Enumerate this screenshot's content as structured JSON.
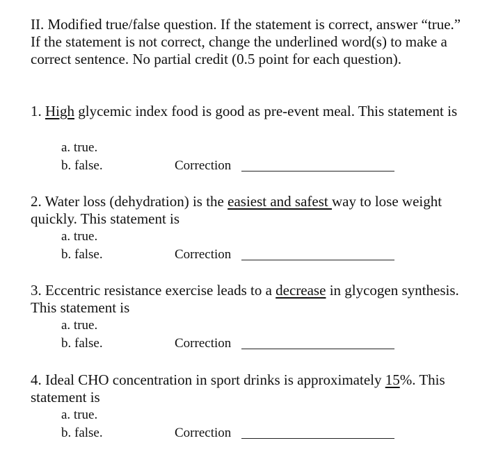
{
  "instructions": "II. Modified true/false question. If the statement is correct, answer “true.” If the statement is not correct, change the underlined word(s) to make a correct sentence. No partial credit (0.5 point for each question).",
  "questions": [
    {
      "pre": "1. ",
      "underlined": "High",
      "post": " glycemic index food is good as pre-event meal. This statement is",
      "option_a": "a. true.",
      "option_b": "b. false.",
      "correction_label": "Correction"
    },
    {
      "pre": "2. Water loss (dehydration) is the ",
      "underlined": "easiest and safest ",
      "post": "way to lose weight quickly. This statement is",
      "option_a": "a. true.",
      "option_b": "b. false.",
      "correction_label": "Correction"
    },
    {
      "pre": "3. Eccentric resistance exercise leads to a ",
      "underlined": "decrease",
      "post": " in glycogen synthesis. This statement is",
      "option_a": "a. true.",
      "option_b": "b. false.",
      "correction_label": "Correction"
    },
    {
      "pre": "4. Ideal CHO concentration in sport drinks is approximately ",
      "underlined": "15",
      "post": "%. This statement is",
      "option_a": "a. true.",
      "option_b": "b. false.",
      "correction_label": "Correction"
    }
  ]
}
